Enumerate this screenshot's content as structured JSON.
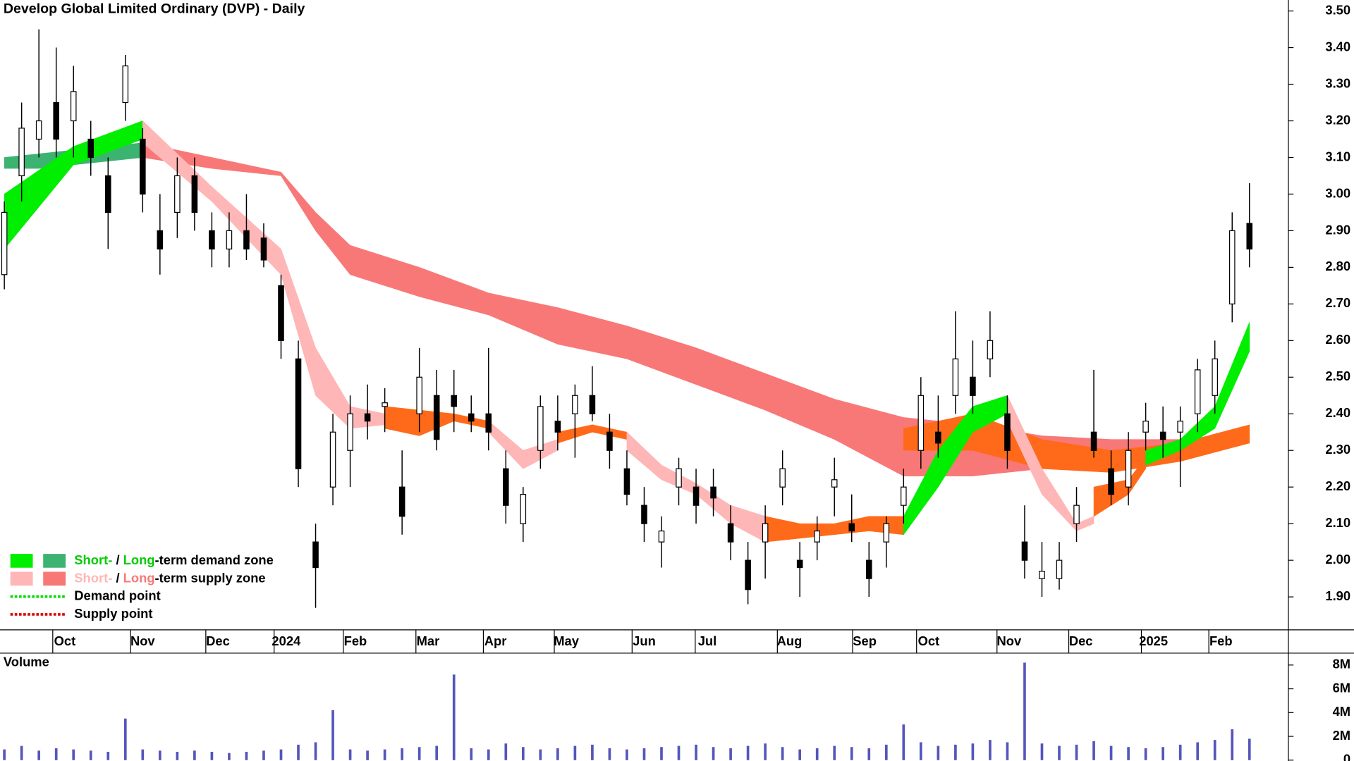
{
  "chart_data": [
    {
      "type": "candlestick",
      "title": "Develop Global Limited Ordinary (DVP) - Daily",
      "up_color": "#ffffff",
      "down_color": "#000000",
      "open": [
        2.78,
        3.05,
        3.15,
        3.25,
        3.2,
        3.15,
        3.05,
        3.25,
        3.15,
        2.9,
        2.95,
        3.05,
        2.9,
        2.85,
        2.9,
        2.88,
        2.75,
        2.55,
        2.05,
        2.2,
        2.3,
        2.4,
        2.42,
        2.2,
        2.4,
        2.45,
        2.45,
        2.4,
        2.4,
        2.25,
        2.1,
        2.3,
        2.38,
        2.4,
        2.45,
        2.35,
        2.25,
        2.15,
        2.05,
        2.2,
        2.2,
        2.2,
        2.1,
        2.0,
        2.05,
        2.2,
        2.0,
        2.05,
        2.2,
        2.1,
        2.0,
        2.05,
        2.15,
        2.3,
        2.35,
        2.45,
        2.5,
        2.55,
        2.4,
        2.05,
        1.95,
        1.95,
        2.1,
        2.35,
        2.25,
        2.2,
        2.35,
        2.35,
        2.35,
        2.4,
        2.45,
        2.7,
        2.92
      ],
      "high": [
        2.98,
        3.25,
        3.45,
        3.4,
        3.35,
        3.2,
        3.1,
        3.38,
        3.18,
        3.0,
        3.1,
        3.1,
        2.95,
        2.95,
        3.0,
        2.92,
        2.78,
        2.6,
        2.1,
        2.4,
        2.45,
        2.48,
        2.47,
        2.3,
        2.58,
        2.52,
        2.52,
        2.45,
        2.58,
        2.3,
        2.2,
        2.45,
        2.45,
        2.48,
        2.53,
        2.4,
        2.3,
        2.2,
        2.12,
        2.28,
        2.25,
        2.25,
        2.15,
        2.05,
        2.15,
        2.3,
        2.05,
        2.12,
        2.28,
        2.18,
        2.05,
        2.12,
        2.25,
        2.5,
        2.45,
        2.68,
        2.6,
        2.68,
        2.45,
        2.15,
        2.05,
        2.05,
        2.2,
        2.52,
        2.3,
        2.35,
        2.43,
        2.42,
        2.42,
        2.55,
        2.6,
        2.95,
        3.03
      ],
      "low": [
        2.74,
        2.98,
        3.1,
        3.1,
        3.1,
        3.05,
        2.85,
        3.2,
        2.95,
        2.78,
        2.88,
        2.9,
        2.8,
        2.8,
        2.82,
        2.8,
        2.55,
        2.2,
        1.87,
        2.15,
        2.2,
        2.33,
        2.35,
        2.07,
        2.35,
        2.3,
        2.35,
        2.35,
        2.3,
        2.1,
        2.05,
        2.25,
        2.3,
        2.28,
        2.38,
        2.25,
        2.15,
        2.05,
        1.98,
        2.15,
        2.1,
        2.12,
        2.0,
        1.88,
        1.95,
        2.15,
        1.9,
        2.0,
        2.12,
        2.05,
        1.9,
        1.98,
        2.1,
        2.25,
        2.28,
        2.4,
        2.4,
        2.5,
        2.25,
        1.95,
        1.9,
        1.92,
        2.05,
        2.28,
        2.15,
        2.15,
        2.3,
        2.28,
        2.2,
        2.35,
        2.4,
        2.65,
        2.8
      ],
      "close": [
        2.95,
        3.18,
        3.2,
        3.15,
        3.28,
        3.1,
        2.95,
        3.35,
        3.0,
        2.85,
        3.05,
        2.95,
        2.85,
        2.9,
        2.85,
        2.82,
        2.6,
        2.25,
        1.98,
        2.35,
        2.4,
        2.38,
        2.43,
        2.12,
        2.5,
        2.33,
        2.42,
        2.38,
        2.35,
        2.15,
        2.18,
        2.42,
        2.35,
        2.45,
        2.4,
        2.3,
        2.18,
        2.1,
        2.08,
        2.25,
        2.15,
        2.17,
        2.05,
        1.92,
        2.1,
        2.25,
        1.98,
        2.08,
        2.22,
        2.08,
        1.95,
        2.1,
        2.2,
        2.45,
        2.32,
        2.55,
        2.45,
        2.6,
        2.3,
        2.0,
        1.97,
        2.0,
        2.15,
        2.3,
        2.18,
        2.3,
        2.38,
        2.33,
        2.38,
        2.52,
        2.55,
        2.9,
        2.85
      ],
      "zones": [
        {
          "color": "#3cb371",
          "x": [
            0,
            2,
            4,
            6,
            8
          ],
          "upper": [
            3.1,
            3.11,
            3.12,
            3.13,
            3.14
          ],
          "lower": [
            3.07,
            3.07,
            3.08,
            3.09,
            3.1
          ]
        },
        {
          "color": "#f87878",
          "x": [
            8,
            12,
            16,
            18,
            20,
            24,
            28,
            32,
            36,
            40,
            44,
            48,
            52,
            56,
            60,
            64,
            68
          ],
          "upper": [
            3.14,
            3.1,
            3.06,
            2.95,
            2.86,
            2.8,
            2.73,
            2.69,
            2.64,
            2.58,
            2.51,
            2.44,
            2.39,
            2.37,
            2.34,
            2.33,
            2.33
          ],
          "lower": [
            3.1,
            3.07,
            3.05,
            2.9,
            2.78,
            2.72,
            2.67,
            2.59,
            2.55,
            2.48,
            2.41,
            2.33,
            2.23,
            2.23,
            2.25,
            2.26,
            2.27
          ]
        },
        {
          "color": "#ff6a1a",
          "x": [
            52,
            56,
            60,
            64,
            68,
            72
          ],
          "upper": [
            2.36,
            2.4,
            2.33,
            2.3,
            2.32,
            2.37
          ],
          "lower": [
            2.3,
            2.3,
            2.25,
            2.24,
            2.27,
            2.32
          ]
        },
        {
          "color": "#00ee00",
          "x": [
            0,
            4,
            8
          ],
          "upper": [
            3.0,
            3.13,
            3.2
          ],
          "lower": [
            2.85,
            3.08,
            3.15
          ]
        },
        {
          "color": "#ffb6b6",
          "x": [
            8,
            12,
            16,
            18,
            20,
            22
          ],
          "upper": [
            3.2,
            3.02,
            2.85,
            2.58,
            2.42,
            2.4
          ],
          "lower": [
            3.14,
            2.98,
            2.78,
            2.45,
            2.36,
            2.37
          ]
        },
        {
          "color": "#ff6a1a",
          "x": [
            22,
            24,
            26,
            28
          ],
          "upper": [
            2.42,
            2.41,
            2.4,
            2.38
          ],
          "lower": [
            2.36,
            2.34,
            2.38,
            2.36
          ]
        },
        {
          "color": "#ffb6b6",
          "x": [
            28,
            30,
            32
          ],
          "upper": [
            2.38,
            2.3,
            2.33
          ],
          "lower": [
            2.35,
            2.25,
            2.3
          ]
        },
        {
          "color": "#ff6a1a",
          "x": [
            32,
            34,
            36
          ],
          "upper": [
            2.35,
            2.37,
            2.35
          ],
          "lower": [
            2.32,
            2.35,
            2.33
          ]
        },
        {
          "color": "#ffb6b6",
          "x": [
            36,
            38,
            40,
            42,
            44
          ],
          "upper": [
            2.35,
            2.26,
            2.21,
            2.15,
            2.12
          ],
          "lower": [
            2.3,
            2.22,
            2.18,
            2.1,
            2.05
          ]
        },
        {
          "color": "#ff6a1a",
          "x": [
            44,
            46,
            48,
            50,
            52
          ],
          "upper": [
            2.12,
            2.1,
            2.1,
            2.12,
            2.12
          ],
          "lower": [
            2.05,
            2.06,
            2.07,
            2.08,
            2.07
          ]
        },
        {
          "color": "#00ee00",
          "x": [
            52,
            54,
            56,
            58
          ],
          "upper": [
            2.12,
            2.3,
            2.42,
            2.45
          ],
          "lower": [
            2.07,
            2.2,
            2.35,
            2.4
          ]
        },
        {
          "color": "#ffb6b6",
          "x": [
            58,
            60,
            62,
            63
          ],
          "upper": [
            2.45,
            2.25,
            2.1,
            2.12
          ],
          "lower": [
            2.38,
            2.18,
            2.08,
            2.1
          ]
        },
        {
          "color": "#ff6a1a",
          "x": [
            63,
            65,
            66
          ],
          "upper": [
            2.2,
            2.22,
            2.28
          ],
          "lower": [
            2.12,
            2.18,
            2.25
          ]
        },
        {
          "color": "#00ee00",
          "x": [
            66,
            68,
            70,
            72
          ],
          "upper": [
            2.3,
            2.33,
            2.42,
            2.65
          ],
          "lower": [
            2.26,
            2.3,
            2.36,
            2.57
          ]
        }
      ],
      "xlim": [
        -0.25,
        74.25
      ],
      "xticks": [
        {
          "value": 3.5,
          "label": "Oct"
        },
        {
          "value": 8,
          "label": "Nov"
        },
        {
          "value": 12.35,
          "label": "Dec"
        },
        {
          "value": 16.3,
          "label": "2024"
        },
        {
          "value": 20.3,
          "label": "Feb"
        },
        {
          "value": 24.5,
          "label": "Mar"
        },
        {
          "value": 28.4,
          "label": "Apr"
        },
        {
          "value": 32.5,
          "label": "May"
        },
        {
          "value": 37,
          "label": "Jun"
        },
        {
          "value": 40.65,
          "label": "Jul"
        },
        {
          "value": 45.4,
          "label": "Aug"
        },
        {
          "value": 49.75,
          "label": "Sep"
        },
        {
          "value": 53.45,
          "label": "Oct"
        },
        {
          "value": 58.1,
          "label": "Nov"
        },
        {
          "value": 62.25,
          "label": "Dec"
        },
        {
          "value": 66.45,
          "label": "2025"
        },
        {
          "value": 70.35,
          "label": "Feb"
        }
      ],
      "ylim": [
        1.81,
        3.53
      ],
      "yticks": [
        {
          "value": 1.9,
          "label": "1.90"
        },
        {
          "value": 2.0,
          "label": "2.00"
        },
        {
          "value": 2.1,
          "label": "2.10"
        },
        {
          "value": 2.2,
          "label": "2.20"
        },
        {
          "value": 2.3,
          "label": "2.30"
        },
        {
          "value": 2.4,
          "label": "2.40"
        },
        {
          "value": 2.5,
          "label": "2.50"
        },
        {
          "value": 2.6,
          "label": "2.60"
        },
        {
          "value": 2.7,
          "label": "2.70"
        },
        {
          "value": 2.8,
          "label": "2.80"
        },
        {
          "value": 2.9,
          "label": "2.90"
        },
        {
          "value": 3.0,
          "label": "3.00"
        },
        {
          "value": 3.1,
          "label": "3.10"
        },
        {
          "value": 3.2,
          "label": "3.20"
        },
        {
          "value": 3.3,
          "label": "3.30"
        },
        {
          "value": 3.4,
          "label": "3.40"
        },
        {
          "value": 3.5,
          "label": "3.50"
        }
      ],
      "legend": [
        {
          "swatches": [
            "#00ee00",
            "#3cb371"
          ],
          "parts": [
            {
              "text": "Short-",
              "color": "#00cc00"
            },
            {
              "text": " / "
            },
            {
              "text": "Long",
              "color": "#00cc00"
            },
            {
              "text": "-term demand zone"
            }
          ]
        },
        {
          "swatches": [
            "#ffb6b6",
            "#f87878"
          ],
          "parts": [
            {
              "text": "Short-",
              "color": "#ffb6b6"
            },
            {
              "text": " / "
            },
            {
              "text": "Long",
              "color": "#f87878"
            },
            {
              "text": "-term supply zone"
            }
          ]
        },
        {
          "line_color": "#00dd00",
          "parts": [
            {
              "text": "Demand point"
            }
          ]
        },
        {
          "line_color": "#dd0000",
          "parts": [
            {
              "text": "Supply point"
            }
          ]
        }
      ]
    },
    {
      "type": "bar",
      "title": "Volume",
      "title_color": "#4b1a8c",
      "color": "#5555bb",
      "values": [
        900000,
        1200000,
        800000,
        1000000,
        900000,
        800000,
        700000,
        3500000,
        900000,
        800000,
        700000,
        800000,
        700000,
        600000,
        700000,
        800000,
        900000,
        1300000,
        1500000,
        4200000,
        900000,
        800000,
        900000,
        1000000,
        1100000,
        1200000,
        7200000,
        1000000,
        900000,
        1400000,
        1100000,
        900000,
        1000000,
        1200000,
        1300000,
        1000000,
        900000,
        1000000,
        1100000,
        1200000,
        1300000,
        1100000,
        1000000,
        1200000,
        1400000,
        1100000,
        900000,
        1000000,
        1200000,
        1100000,
        1000000,
        1300000,
        3000000,
        1500000,
        1200000,
        1300000,
        1400000,
        1700000,
        1500000,
        8200000,
        1400000,
        1200000,
        1300000,
        1600000,
        1200000,
        1100000,
        1000000,
        1100000,
        1300000,
        1500000,
        1700000,
        2600000,
        1800000
      ],
      "ylim": [
        0,
        9000000
      ],
      "yticks": [
        {
          "value": 0,
          "label": "0"
        },
        {
          "value": 2000000,
          "label": "2M"
        },
        {
          "value": 4000000,
          "label": "4M"
        },
        {
          "value": 6000000,
          "label": "6M"
        },
        {
          "value": 8000000,
          "label": "8M"
        }
      ]
    }
  ]
}
